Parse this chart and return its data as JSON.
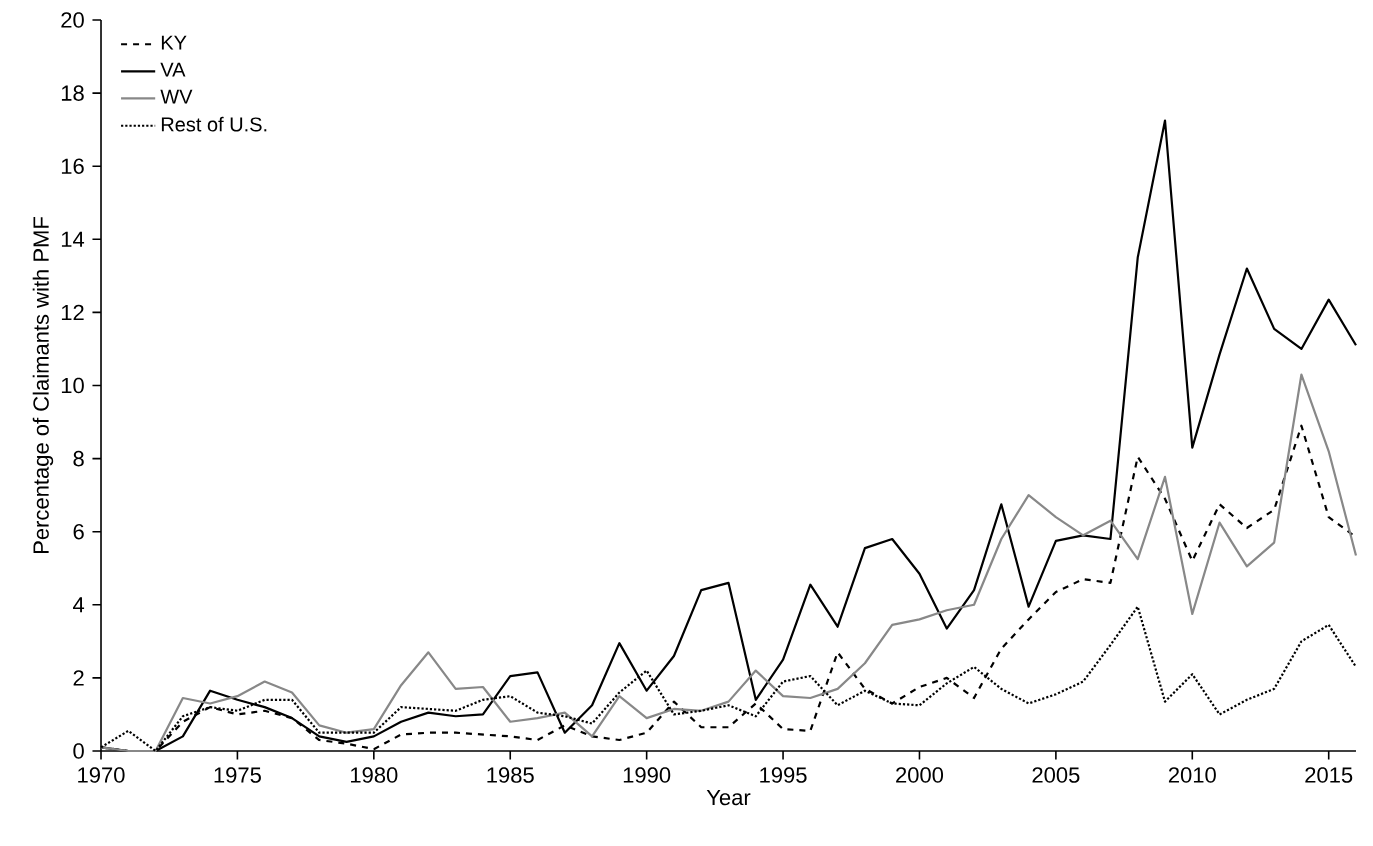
{
  "chart_data": {
    "type": "line",
    "xlabel": "Year",
    "ylabel": "Percentage of Claimants with PMF",
    "x": [
      1970,
      1971,
      1972,
      1973,
      1974,
      1975,
      1976,
      1977,
      1978,
      1979,
      1980,
      1981,
      1982,
      1983,
      1984,
      1985,
      1986,
      1987,
      1988,
      1989,
      1990,
      1991,
      1992,
      1993,
      1994,
      1995,
      1996,
      1997,
      1998,
      1999,
      2000,
      2001,
      2002,
      2003,
      2004,
      2005,
      2006,
      2007,
      2008,
      2009,
      2010,
      2011,
      2012,
      2013,
      2014,
      2015,
      2016
    ],
    "series": [
      {
        "name": "KY",
        "color": "#000000",
        "line_style": "dashed",
        "values": [
          0.1,
          0,
          0,
          0.8,
          1.2,
          1.0,
          1.1,
          0.9,
          0.3,
          0.2,
          0.05,
          0.45,
          0.5,
          0.5,
          0.45,
          0.4,
          0.3,
          0.7,
          0.4,
          0.3,
          0.5,
          1.35,
          0.65,
          0.65,
          1.3,
          0.6,
          0.55,
          2.7,
          1.7,
          1.3,
          1.75,
          2.0,
          1.45,
          2.8,
          3.6,
          4.35,
          4.7,
          4.6,
          8.05,
          6.9,
          5.2,
          6.75,
          6.1,
          6.6,
          8.9,
          6.4,
          5.85
        ]
      },
      {
        "name": "VA",
        "color": "#000000",
        "line_style": "solid",
        "values": [
          0.1,
          0,
          0,
          0.4,
          1.65,
          1.4,
          1.2,
          0.9,
          0.4,
          0.25,
          0.4,
          0.8,
          1.05,
          0.95,
          1.0,
          2.05,
          2.15,
          0.5,
          1.25,
          2.95,
          1.65,
          2.6,
          4.4,
          4.6,
          1.4,
          2.5,
          4.55,
          3.4,
          5.55,
          5.8,
          4.85,
          3.35,
          4.4,
          6.75,
          3.95,
          5.75,
          5.9,
          5.8,
          13.5,
          17.25,
          8.3,
          10.85,
          13.2,
          11.55,
          11.0,
          12.35,
          11.1
        ]
      },
      {
        "name": "WV",
        "color": "#888888",
        "line_style": "solid",
        "values": [
          0.1,
          0,
          0,
          1.45,
          1.3,
          1.5,
          1.9,
          1.6,
          0.7,
          0.5,
          0.6,
          1.8,
          2.7,
          1.7,
          1.75,
          0.8,
          0.9,
          1.05,
          0.4,
          1.5,
          0.9,
          1.15,
          1.1,
          1.35,
          2.2,
          1.5,
          1.45,
          1.7,
          2.4,
          3.45,
          3.6,
          3.85,
          4.0,
          5.8,
          7.0,
          6.4,
          5.9,
          6.3,
          5.25,
          7.5,
          3.75,
          6.25,
          5.05,
          5.7,
          10.3,
          8.2,
          5.35
        ]
      },
      {
        "name": "Rest of U.S.",
        "color": "#000000",
        "line_style": "dotted",
        "values": [
          0.1,
          0.55,
          0,
          0.95,
          1.2,
          1.1,
          1.4,
          1.4,
          0.5,
          0.5,
          0.5,
          1.2,
          1.15,
          1.1,
          1.4,
          1.5,
          1.05,
          0.95,
          0.75,
          1.6,
          2.2,
          1.0,
          1.1,
          1.25,
          0.95,
          1.9,
          2.05,
          1.25,
          1.65,
          1.3,
          1.25,
          1.85,
          2.3,
          1.7,
          1.3,
          1.55,
          1.9,
          2.9,
          3.95,
          1.35,
          2.1,
          1.0,
          1.4,
          1.7,
          3.0,
          3.45,
          2.3
        ]
      }
    ],
    "xlim": [
      1970,
      2016
    ],
    "xticks": [
      1970,
      1975,
      1980,
      1985,
      1990,
      1995,
      2000,
      2005,
      2010,
      2015
    ],
    "ylim": [
      0,
      20
    ],
    "yticks": [
      0,
      2,
      4,
      6,
      8,
      10,
      12,
      14,
      16,
      18,
      20
    ],
    "grid": false,
    "legend": "top left"
  }
}
